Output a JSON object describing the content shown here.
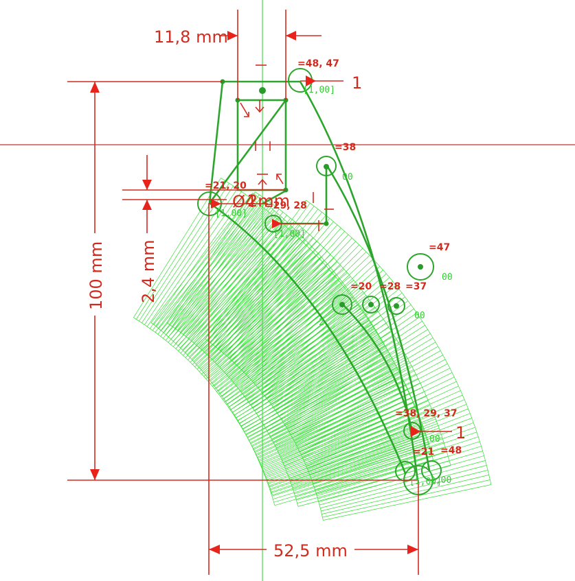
{
  "dimensions": {
    "width_top": "11,8 mm",
    "height_left": "100 mm",
    "gap_small": "2,4 mm",
    "width_bottom": "52,5 mm",
    "fragment_mm": "2mm",
    "fragment_dia": "Ø4"
  },
  "constraints": {
    "c1": "=48, 47",
    "c2": "=38",
    "c3": "=21, 20",
    "c4": "=29, 28",
    "c5": "=47",
    "c6": "=20",
    "c7": "=28",
    "c8": "=37",
    "c9": "=38, 29, 37",
    "c10": "=21",
    "c11": "=48"
  },
  "symbols": {
    "one": "1",
    "lbl_top": "[1,00]",
    "lbl_left": "[1,00]",
    "lbl_mid": "[1,00]",
    "lbl_bot1": "[1,00]",
    "lbl_bot2": "[1,00]",
    "frag_a": "00",
    "frag_b": "00",
    "frag_c": "00",
    "frag_d": "00",
    "frag_e": "2",
    "frag_f": "1,00"
  },
  "colors": {
    "dimension": "#d42a1e",
    "geometry": "#2da52d",
    "hatch": "#33dd33",
    "axis_v": "#44dd44",
    "axis_h": "#c03030"
  }
}
